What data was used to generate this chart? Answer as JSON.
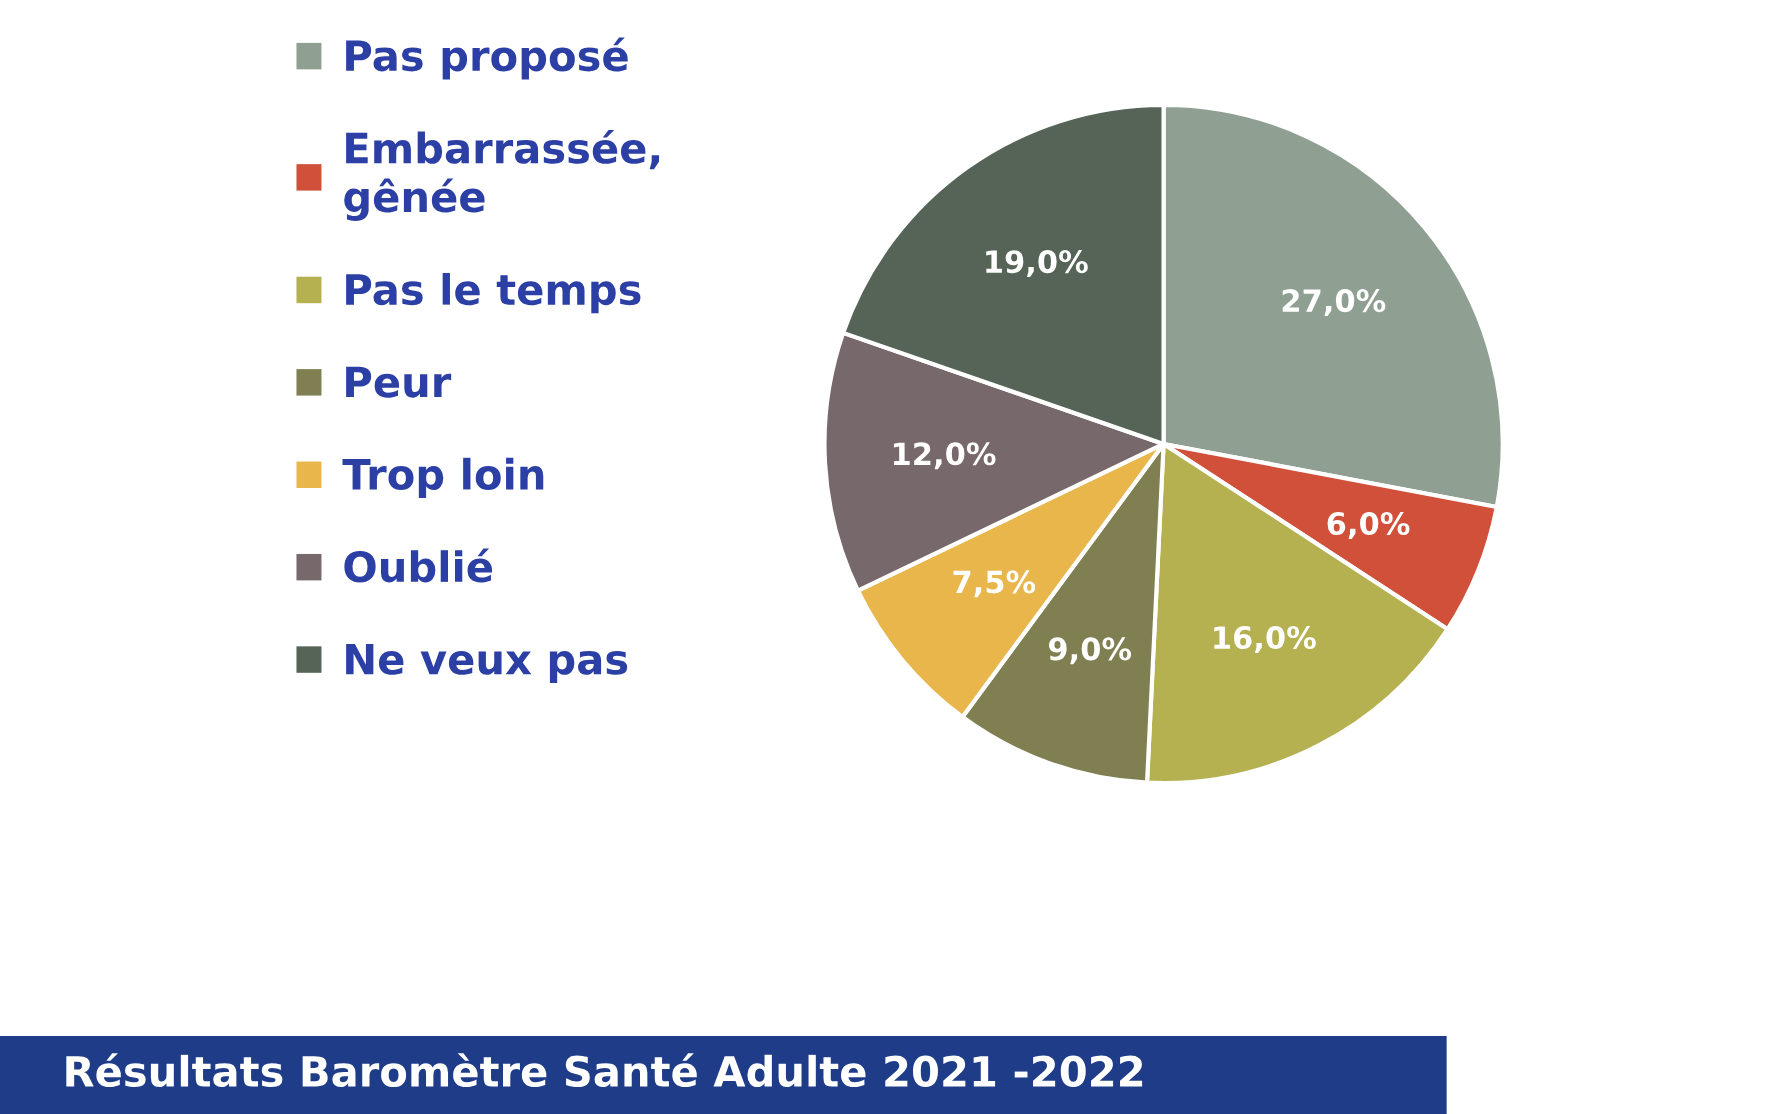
{
  "chart_data": {
    "type": "pie",
    "categories": [
      "Pas proposé",
      "Embarrassée,\ngênée",
      "Pas le temps",
      "Peur",
      "Trop loin",
      "Oublié",
      "Ne veux pas"
    ],
    "values": [
      27.0,
      6.0,
      16.0,
      9.0,
      7.5,
      12.0,
      19.0
    ],
    "value_labels": [
      "27,0%",
      "6,0%",
      "16,0%",
      "9,0%",
      "7,5%",
      "12,0%",
      "19,0%"
    ],
    "colors": [
      "#8fa093",
      "#d0503a",
      "#b5b050",
      "#7f7f52",
      "#e8b64a",
      "#77686b",
      "#566457"
    ],
    "legend": "left",
    "annotations": [
      "Résultats Baromètre Santé Adulte 2021 -2022"
    ]
  }
}
